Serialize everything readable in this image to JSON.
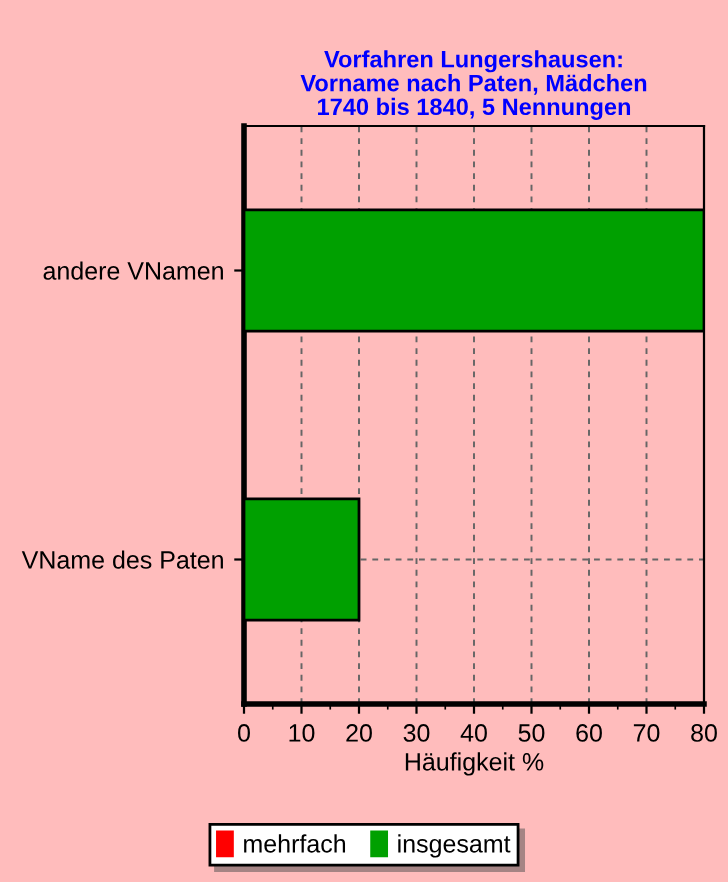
{
  "chart_data": {
    "type": "bar",
    "orientation": "horizontal",
    "stacked": true,
    "title": "Vorfahren Lungershausen:\nVorname nach Paten, Mädchen\n1740 bis 1840, 5 Nennungen",
    "xlabel": "Häufigkeit %",
    "categories": [
      "andere VNamen",
      "VName des Paten"
    ],
    "series": [
      {
        "name": "mehrfach",
        "color": "#ff0000",
        "values": [
          0,
          0
        ]
      },
      {
        "name": "insgesamt",
        "color": "#00a000",
        "values": [
          80,
          20
        ]
      }
    ],
    "xlim": [
      0,
      80
    ],
    "xticks": [
      0,
      10,
      20,
      30,
      40,
      50,
      60,
      70,
      80
    ],
    "grid": true,
    "legend": "bottom"
  }
}
